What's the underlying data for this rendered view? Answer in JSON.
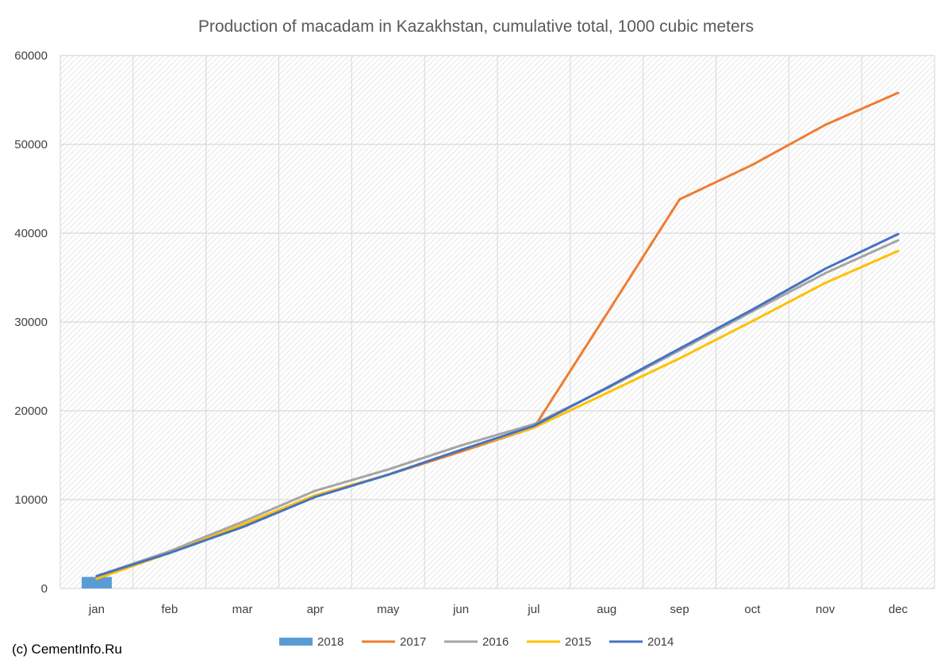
{
  "chart_data": {
    "type": "line",
    "title": "Production of macadam in Kazakhstan, cumulative total, 1000 cubic meters",
    "xlabel": "",
    "ylabel": "",
    "categories": [
      "jan",
      "feb",
      "mar",
      "apr",
      "may",
      "jun",
      "jul",
      "aug",
      "sep",
      "oct",
      "nov",
      "dec"
    ],
    "ylim": [
      0,
      60000
    ],
    "yticks": [
      0,
      10000,
      20000,
      30000,
      40000,
      50000,
      60000
    ],
    "grid": true,
    "legend_position": "bottom",
    "series": [
      {
        "name": "2018",
        "kind": "bar",
        "color": "#5b9bd5",
        "values": [
          1300,
          null,
          null,
          null,
          null,
          null,
          null,
          null,
          null,
          null,
          null,
          null
        ]
      },
      {
        "name": "2017",
        "kind": "line",
        "color": "#ed7d31",
        "values": [
          1400,
          4000,
          7000,
          10400,
          12800,
          15400,
          18100,
          30900,
          43800,
          47700,
          52200,
          55800
        ]
      },
      {
        "name": "2016",
        "kind": "line",
        "color": "#a5a5a5",
        "values": [
          1400,
          4200,
          7500,
          11000,
          13400,
          16100,
          18500,
          22500,
          26800,
          31200,
          35500,
          39200
        ]
      },
      {
        "name": "2015",
        "kind": "line",
        "color": "#ffc000",
        "values": [
          1100,
          4000,
          7200,
          10500,
          12800,
          15600,
          18100,
          22000,
          25900,
          30100,
          34400,
          38000
        ]
      },
      {
        "name": "2014",
        "kind": "line",
        "color": "#4472c4",
        "values": [
          1400,
          4000,
          6900,
          10300,
          12800,
          15600,
          18300,
          22600,
          27000,
          31400,
          36000,
          39900
        ]
      }
    ]
  },
  "credit": "(c) CementInfo.Ru"
}
